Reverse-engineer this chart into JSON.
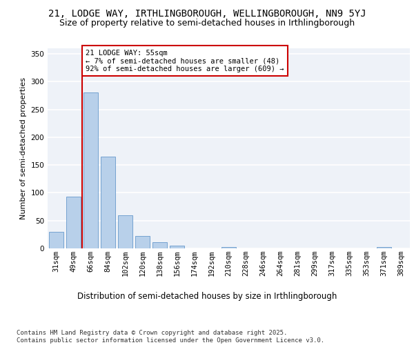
{
  "title": "21, LODGE WAY, IRTHLINGBOROUGH, WELLINGBOROUGH, NN9 5YJ",
  "subtitle": "Size of property relative to semi-detached houses in Irthlingborough",
  "xlabel": "Distribution of semi-detached houses by size in Irthlingborough",
  "ylabel": "Number of semi-detached properties",
  "categories": [
    "31sqm",
    "49sqm",
    "66sqm",
    "84sqm",
    "102sqm",
    "120sqm",
    "138sqm",
    "156sqm",
    "174sqm",
    "192sqm",
    "210sqm",
    "228sqm",
    "246sqm",
    "264sqm",
    "281sqm",
    "299sqm",
    "317sqm",
    "335sqm",
    "353sqm",
    "371sqm",
    "389sqm"
  ],
  "values": [
    30,
    93,
    280,
    165,
    60,
    22,
    11,
    5,
    0,
    0,
    3,
    0,
    0,
    0,
    0,
    0,
    0,
    0,
    0,
    2,
    0
  ],
  "bar_color": "#b8d0ea",
  "bar_edge_color": "#6699cc",
  "property_line_x": 1.5,
  "property_line_label": "21 LODGE WAY: 55sqm",
  "annotation_smaller": "← 7% of semi-detached houses are smaller (48)",
  "annotation_larger": "92% of semi-detached houses are larger (609) →",
  "annotation_box_facecolor": "#ffffff",
  "annotation_box_edgecolor": "#cc0000",
  "property_line_color": "#cc0000",
  "ylim": [
    0,
    360
  ],
  "yticks": [
    0,
    50,
    100,
    150,
    200,
    250,
    300,
    350
  ],
  "plot_bg_color": "#eef2f8",
  "fig_bg_color": "#ffffff",
  "footer": "Contains HM Land Registry data © Crown copyright and database right 2025.\nContains public sector information licensed under the Open Government Licence v3.0.",
  "title_fontsize": 10,
  "subtitle_fontsize": 9,
  "xlabel_fontsize": 8.5,
  "ylabel_fontsize": 8,
  "tick_fontsize": 7.5,
  "footer_fontsize": 6.5,
  "annotation_fontsize": 7.5
}
